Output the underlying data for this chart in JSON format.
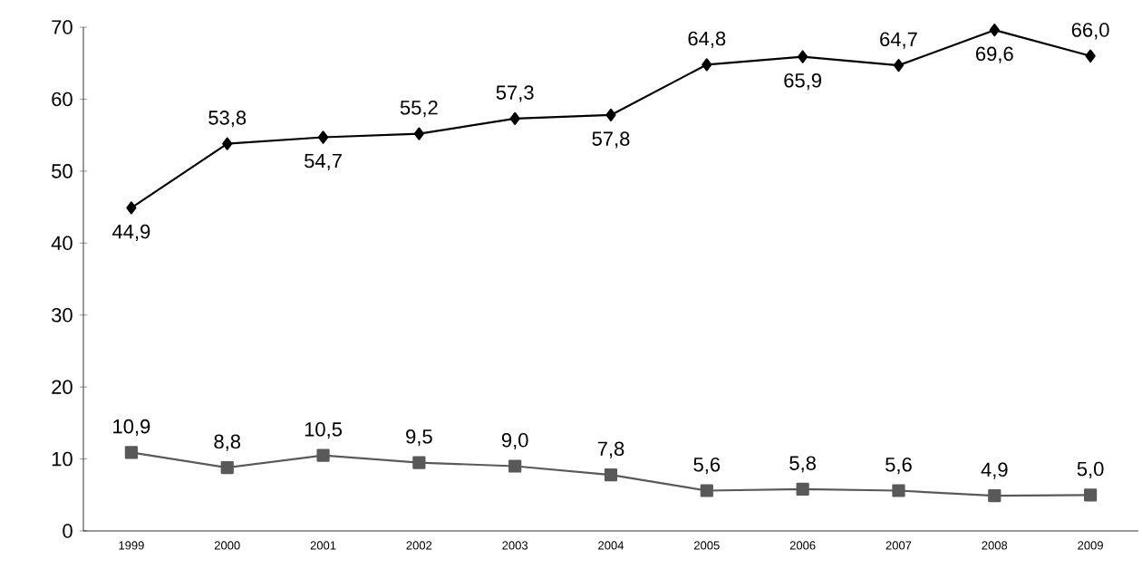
{
  "chart_data": {
    "type": "line",
    "categories": [
      "1999",
      "2000",
      "2001",
      "2002",
      "2003",
      "2004",
      "2005",
      "2006",
      "2007",
      "2008",
      "2009"
    ],
    "series": [
      {
        "color": "#000000",
        "marker": "diamond",
        "values": [
          44.9,
          53.8,
          54.7,
          55.2,
          57.3,
          57.8,
          64.8,
          65.9,
          64.7,
          69.6,
          66.0
        ],
        "value_labels": [
          "44,9",
          "53,8",
          "54,7",
          "55,2",
          "57,3",
          "57,8",
          "64,8",
          "65,9",
          "64,7",
          "69,6",
          "66,0"
        ]
      },
      {
        "color": "#595959",
        "marker": "square",
        "values": [
          10.9,
          8.8,
          10.5,
          9.5,
          9.0,
          7.8,
          5.6,
          5.8,
          5.6,
          4.9,
          5.0
        ],
        "value_labels": [
          "10,9",
          "8,8",
          "10,5",
          "9,5",
          "9,0",
          "7,8",
          "5,6",
          "5,8",
          "5,6",
          "4,9",
          "5,0"
        ]
      }
    ],
    "ylim": [
      0,
      70
    ],
    "yticks": [
      0,
      10,
      20,
      30,
      40,
      50,
      60,
      70
    ],
    "grid": false,
    "line_style": "solid"
  }
}
